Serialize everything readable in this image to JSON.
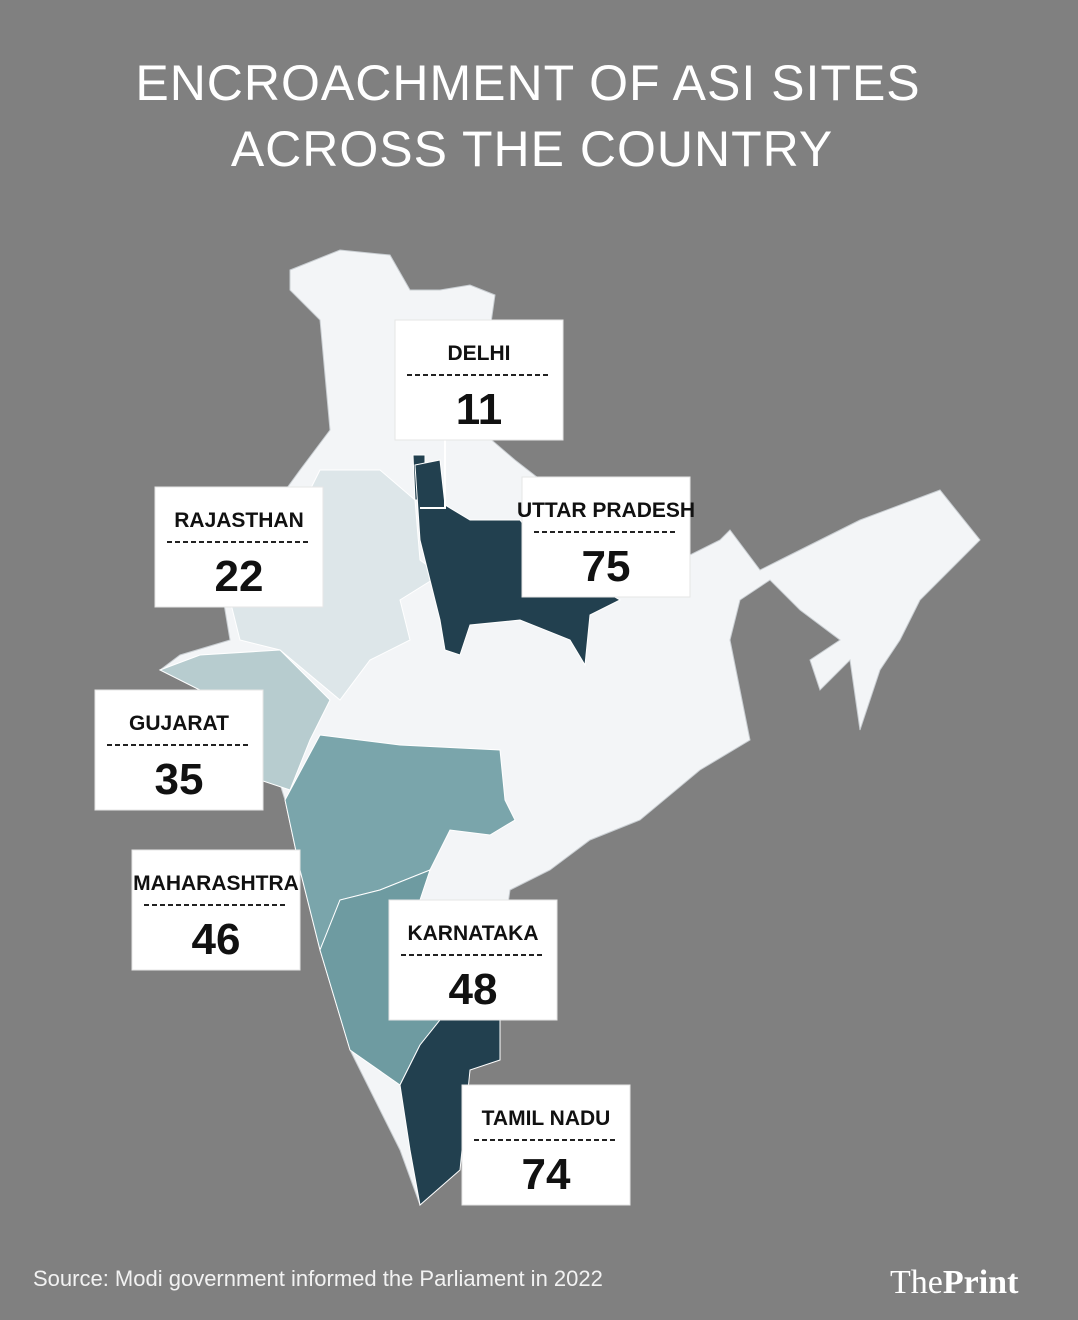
{
  "title": [
    "ENCROACHMENT OF ASI SITES",
    "ACROSS THE COUNTRY"
  ],
  "states": [
    {
      "name": "DELHI",
      "value": 11,
      "color": "#22404f"
    },
    {
      "name": "RAJASTHAN",
      "value": 22,
      "color": "#dde6e9"
    },
    {
      "name": "UTTAR PRADESH",
      "value": 75,
      "color": "#22404f"
    },
    {
      "name": "GUJARAT",
      "value": 35,
      "color": "#b7cccf"
    },
    {
      "name": "MAHARASHTRA",
      "value": 46,
      "color": "#7aa5ab"
    },
    {
      "name": "KARNATAKA",
      "value": 48,
      "color": "#6e9ba1"
    },
    {
      "name": "TAMIL NADU",
      "value": 74,
      "color": "#22404f"
    }
  ],
  "source": "Source: Modi government informed the Parliament in 2022",
  "logo": {
    "prefix": "The",
    "main": "Print"
  }
}
